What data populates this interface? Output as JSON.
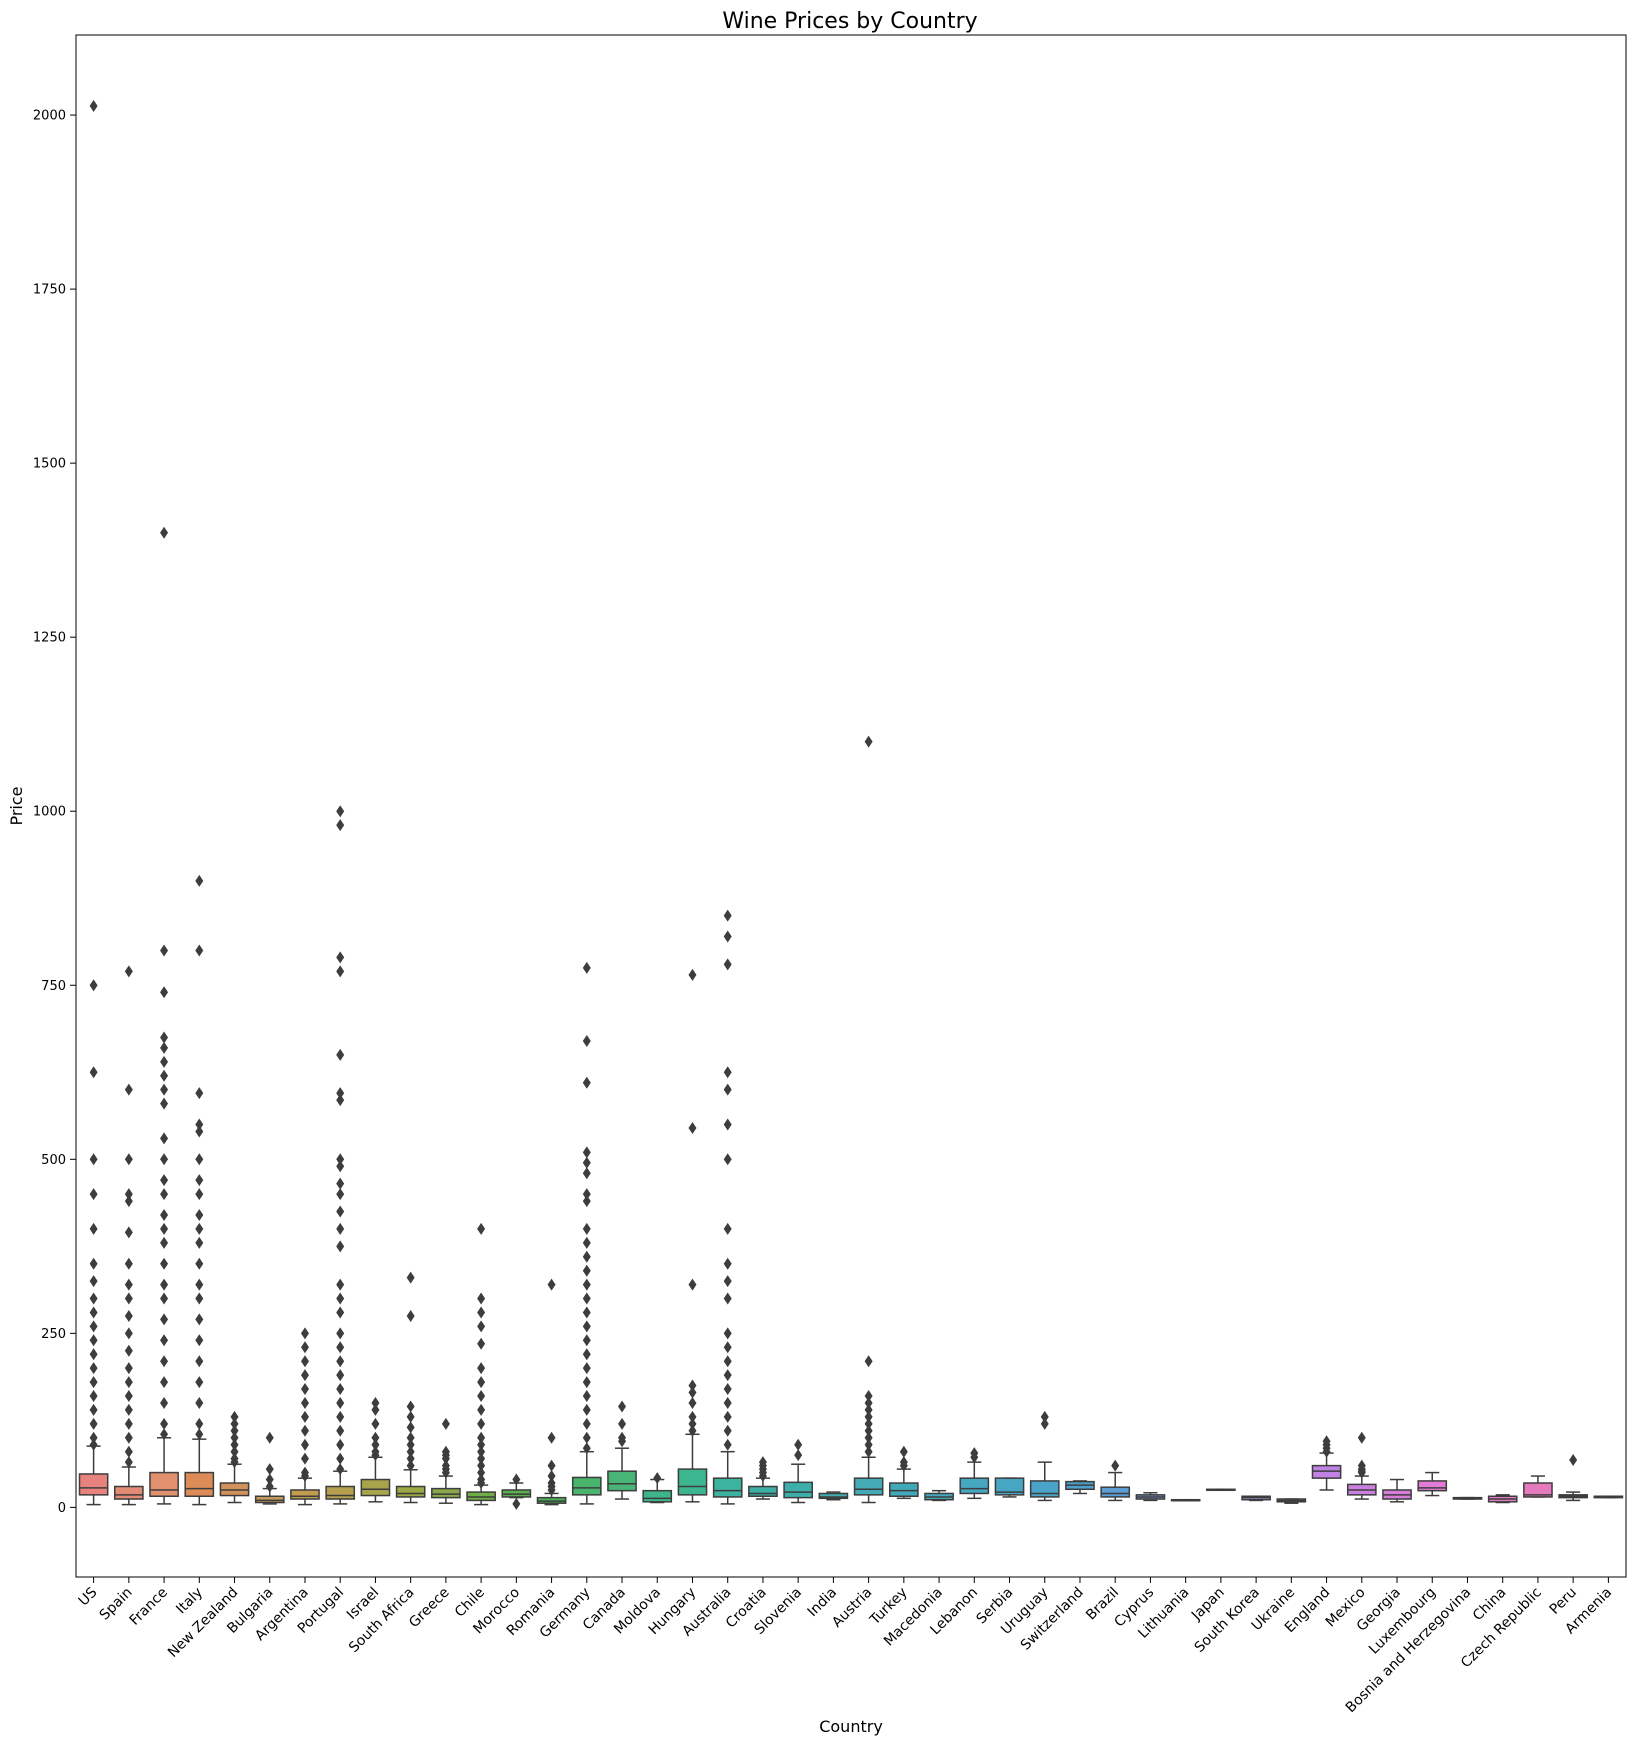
{
  "chart_data": {
    "type": "box",
    "title": "Wine Prices by Country",
    "xlabel": "Country",
    "ylabel": "Price",
    "ylim": [
      -100,
      2115
    ],
    "yticks": [
      0,
      250,
      500,
      750,
      1000,
      1250,
      1500,
      1750,
      2000
    ],
    "grid": false,
    "legend": "none",
    "categories": [
      "US",
      "Spain",
      "France",
      "Italy",
      "New Zealand",
      "Bulgaria",
      "Argentina",
      "Portugal",
      "Israel",
      "South Africa",
      "Greece",
      "Chile",
      "Morocco",
      "Romania",
      "Germany",
      "Canada",
      "Moldova",
      "Hungary",
      "Australia",
      "Croatia",
      "Slovenia",
      "India",
      "Austria",
      "Turkey",
      "Macedonia",
      "Lebanon",
      "Serbia",
      "Uruguay",
      "Switzerland",
      "Brazil",
      "Cyprus",
      "Lithuania",
      "Japan",
      "South Korea",
      "Ukraine",
      "England",
      "Mexico",
      "Georgia",
      "Luxembourg",
      "Bosnia and Herzegovina",
      "China",
      "Czech Republic",
      "Peru",
      "Armenia"
    ],
    "colors": [
      "#e8827e",
      "#e28b76",
      "#e2916f",
      "#dd8c57",
      "#d2925c",
      "#c49a5a",
      "#c29c4c",
      "#b6a04d",
      "#a8a44c",
      "#9aa845",
      "#8aa84b",
      "#6fae44",
      "#58b04d",
      "#4cb35b",
      "#49b46c",
      "#48b475",
      "#3db689",
      "#3bb68e",
      "#3bb39f",
      "#3dafa5",
      "#3eaeab",
      "#40acb0",
      "#43abb5",
      "#42a9b9",
      "#44a9bd",
      "#45a7c0",
      "#47a6c4",
      "#4aa4c9",
      "#4ca2cd",
      "#5b9dd4",
      "#7896d8",
      "#8b92dc",
      "#9a8ee1",
      "#a98ae2",
      "#b886e7",
      "#c082e4",
      "#cd7fe0",
      "#d87cda",
      "#e27ad6",
      "#e47ace",
      "#e57ac6",
      "#e57bbd",
      "#e77cb4",
      "#e67ea9"
    ],
    "series": [
      {
        "q1": 18,
        "median": 28,
        "q3": 48,
        "whisker_low": 4,
        "whisker_high": 88,
        "outliers": [
          2013,
          750,
          625,
          500,
          450,
          400,
          350,
          325,
          300,
          280,
          260,
          240,
          220,
          200,
          180,
          160,
          140,
          120,
          100,
          90
        ]
      },
      {
        "q1": 12,
        "median": 18,
        "q3": 30,
        "whisker_low": 4,
        "whisker_high": 58,
        "outliers": [
          770,
          600,
          500,
          450,
          440,
          395,
          350,
          320,
          300,
          275,
          250,
          225,
          200,
          180,
          160,
          140,
          120,
          100,
          80,
          65
        ]
      },
      {
        "q1": 16,
        "median": 25,
        "q3": 50,
        "whisker_low": 5,
        "whisker_high": 100,
        "outliers": [
          1400,
          800,
          740,
          675,
          660,
          640,
          620,
          600,
          580,
          530,
          500,
          470,
          450,
          420,
          400,
          380,
          350,
          320,
          300,
          270,
          240,
          210,
          180,
          150,
          120,
          105
        ]
      },
      {
        "q1": 16,
        "median": 27,
        "q3": 50,
        "whisker_low": 4,
        "whisker_high": 98,
        "outliers": [
          900,
          800,
          595,
          550,
          540,
          500,
          470,
          450,
          420,
          400,
          380,
          350,
          320,
          300,
          270,
          240,
          210,
          180,
          150,
          120,
          105
        ]
      },
      {
        "q1": 17,
        "median": 25,
        "q3": 35,
        "whisker_low": 7,
        "whisker_high": 62,
        "outliers": [
          130,
          120,
          110,
          100,
          90,
          80,
          70,
          65
        ]
      },
      {
        "q1": 7,
        "median": 10,
        "q3": 16,
        "whisker_low": 5,
        "whisker_high": 27,
        "outliers": [
          100,
          55,
          40,
          30
        ]
      },
      {
        "q1": 12,
        "median": 16,
        "q3": 25,
        "whisker_low": 4,
        "whisker_high": 42,
        "outliers": [
          250,
          230,
          210,
          190,
          170,
          150,
          130,
          110,
          90,
          70,
          50,
          45
        ]
      },
      {
        "q1": 12,
        "median": 17,
        "q3": 30,
        "whisker_low": 5,
        "whisker_high": 52,
        "outliers": [
          1000,
          980,
          790,
          770,
          650,
          595,
          585,
          500,
          490,
          465,
          450,
          425,
          400,
          375,
          320,
          300,
          280,
          250,
          230,
          210,
          190,
          170,
          150,
          130,
          110,
          90,
          70,
          55
        ]
      },
      {
        "q1": 17,
        "median": 26,
        "q3": 40,
        "whisker_low": 8,
        "whisker_high": 72,
        "outliers": [
          150,
          140,
          120,
          100,
          90,
          80,
          75
        ]
      },
      {
        "q1": 15,
        "median": 20,
        "q3": 30,
        "whisker_low": 7,
        "whisker_high": 54,
        "outliers": [
          330,
          275,
          145,
          130,
          115,
          100,
          90,
          80,
          70,
          60
        ]
      },
      {
        "q1": 14,
        "median": 19,
        "q3": 27,
        "whisker_low": 6,
        "whisker_high": 45,
        "outliers": [
          120,
          80,
          75,
          70,
          60,
          55,
          50
        ]
      },
      {
        "q1": 10,
        "median": 15,
        "q3": 22,
        "whisker_low": 4,
        "whisker_high": 32,
        "outliers": [
          400,
          300,
          280,
          260,
          235,
          200,
          180,
          160,
          140,
          120,
          100,
          90,
          80,
          70,
          60,
          50,
          40,
          35
        ]
      },
      {
        "q1": 15,
        "median": 19,
        "q3": 25,
        "whisker_low": 14,
        "whisker_high": 35,
        "outliers": [
          40,
          5
        ]
      },
      {
        "q1": 6,
        "median": 9,
        "q3": 14,
        "whisker_low": 4,
        "whisker_high": 20,
        "outliers": [
          320,
          100,
          60,
          45,
          35,
          30,
          25
        ]
      },
      {
        "q1": 18,
        "median": 28,
        "q3": 43,
        "whisker_low": 5,
        "whisker_high": 80,
        "outliers": [
          775,
          670,
          610,
          510,
          495,
          480,
          450,
          440,
          400,
          380,
          360,
          340,
          320,
          300,
          280,
          260,
          240,
          220,
          200,
          180,
          160,
          140,
          120,
          100,
          85
        ]
      },
      {
        "q1": 24,
        "median": 34,
        "q3": 52,
        "whisker_low": 12,
        "whisker_high": 85,
        "outliers": [
          145,
          120,
          100,
          95
        ]
      },
      {
        "q1": 8,
        "median": 13,
        "q3": 24,
        "whisker_low": 7,
        "whisker_high": 40,
        "outliers": [
          42
        ]
      },
      {
        "q1": 18,
        "median": 30,
        "q3": 55,
        "whisker_low": 8,
        "whisker_high": 105,
        "outliers": [
          765,
          545,
          320,
          175,
          165,
          150,
          130,
          120,
          110
        ]
      },
      {
        "q1": 15,
        "median": 24,
        "q3": 42,
        "whisker_low": 5,
        "whisker_high": 80,
        "outliers": [
          850,
          820,
          780,
          625,
          600,
          550,
          500,
          400,
          350,
          325,
          300,
          250,
          230,
          210,
          190,
          170,
          150,
          130,
          110,
          90
        ]
      },
      {
        "q1": 16,
        "median": 20,
        "q3": 30,
        "whisker_low": 12,
        "whisker_high": 42,
        "outliers": [
          65,
          60,
          55,
          50,
          45
        ]
      },
      {
        "q1": 14,
        "median": 22,
        "q3": 36,
        "whisker_low": 7,
        "whisker_high": 62,
        "outliers": [
          90,
          75
        ]
      },
      {
        "q1": 13,
        "median": 15,
        "q3": 20,
        "whisker_low": 11,
        "whisker_high": 22,
        "outliers": []
      },
      {
        "q1": 18,
        "median": 26,
        "q3": 42,
        "whisker_low": 7,
        "whisker_high": 72,
        "outliers": [
          1100,
          210,
          160,
          150,
          140,
          130,
          120,
          110,
          100,
          90,
          80
        ]
      },
      {
        "q1": 16,
        "median": 24,
        "q3": 35,
        "whisker_low": 13,
        "whisker_high": 55,
        "outliers": [
          80,
          65,
          60
        ]
      },
      {
        "q1": 11,
        "median": 15,
        "q3": 20,
        "whisker_low": 10,
        "whisker_high": 24,
        "outliers": []
      },
      {
        "q1": 20,
        "median": 27,
        "q3": 42,
        "whisker_low": 13,
        "whisker_high": 65,
        "outliers": [
          78,
          72
        ]
      },
      {
        "q1": 18,
        "median": 22,
        "q3": 42,
        "whisker_low": 15,
        "whisker_high": 42,
        "outliers": []
      },
      {
        "q1": 15,
        "median": 20,
        "q3": 38,
        "whisker_low": 10,
        "whisker_high": 65,
        "outliers": [
          130,
          120
        ]
      },
      {
        "q1": 26,
        "median": 32,
        "q3": 37,
        "whisker_low": 20,
        "whisker_high": 38,
        "outliers": []
      },
      {
        "q1": 15,
        "median": 20,
        "q3": 29,
        "whisker_low": 10,
        "whisker_high": 50,
        "outliers": [
          60
        ]
      },
      {
        "q1": 12,
        "median": 15,
        "q3": 18,
        "whisker_low": 10,
        "whisker_high": 21,
        "outliers": []
      },
      {
        "q1": 10,
        "median": 10,
        "q3": 11,
        "whisker_low": 10,
        "whisker_high": 11,
        "outliers": []
      },
      {
        "q1": 25,
        "median": 25,
        "q3": 26,
        "whisker_low": 25,
        "whisker_high": 26,
        "outliers": []
      },
      {
        "q1": 11,
        "median": 14,
        "q3": 16,
        "whisker_low": 10,
        "whisker_high": 16,
        "outliers": []
      },
      {
        "q1": 8,
        "median": 10,
        "q3": 12,
        "whisker_low": 6,
        "whisker_high": 12,
        "outliers": []
      },
      {
        "q1": 42,
        "median": 52,
        "q3": 60,
        "whisker_low": 25,
        "whisker_high": 78,
        "outliers": [
          95,
          90,
          85,
          80
        ]
      },
      {
        "q1": 18,
        "median": 25,
        "q3": 33,
        "whisker_low": 12,
        "whisker_high": 45,
        "outliers": [
          100,
          60,
          55,
          52,
          50
        ]
      },
      {
        "q1": 12,
        "median": 18,
        "q3": 25,
        "whisker_low": 8,
        "whisker_high": 40,
        "outliers": []
      },
      {
        "q1": 24,
        "median": 28,
        "q3": 38,
        "whisker_low": 17,
        "whisker_high": 50,
        "outliers": []
      },
      {
        "q1": 12,
        "median": 13,
        "q3": 14,
        "whisker_low": 12,
        "whisker_high": 14,
        "outliers": []
      },
      {
        "q1": 8,
        "median": 12,
        "q3": 16,
        "whisker_low": 7,
        "whisker_high": 18,
        "outliers": []
      },
      {
        "q1": 15,
        "median": 18,
        "q3": 35,
        "whisker_low": 15,
        "whisker_high": 45,
        "outliers": []
      },
      {
        "q1": 14,
        "median": 16,
        "q3": 18,
        "whisker_low": 10,
        "whisker_high": 22,
        "outliers": [
          68
        ]
      },
      {
        "q1": 14,
        "median": 15,
        "q3": 16,
        "whisker_low": 14,
        "whisker_high": 16,
        "outliers": []
      }
    ]
  }
}
